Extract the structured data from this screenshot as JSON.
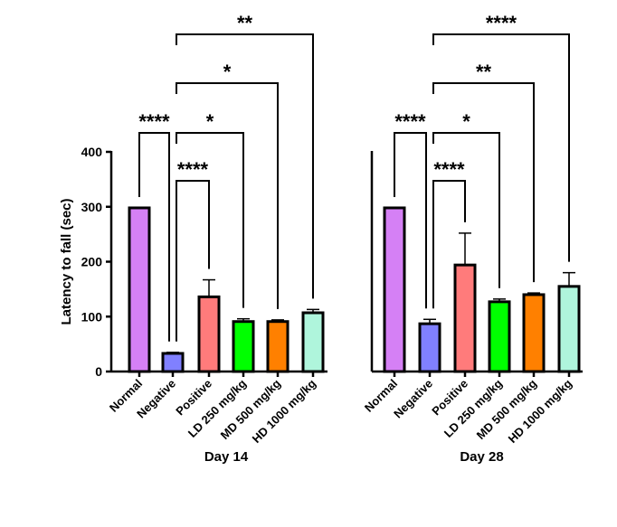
{
  "chart_data": [
    {
      "type": "bar",
      "title": "Day 14",
      "ylabel": "Latency to fall (sec)",
      "ylim": [
        0,
        400
      ],
      "yticks": [
        0,
        100,
        200,
        300,
        400
      ],
      "categories": [
        "Normal",
        "Negative",
        "Positive",
        "LD 250 mg/kg",
        "MD 500 mg/kg",
        "HD 1000 mg/kg"
      ],
      "values": [
        298,
        33,
        136,
        91,
        91,
        107
      ],
      "errors": [
        0,
        2,
        31,
        5,
        3,
        6
      ],
      "colors": [
        "#d580f5",
        "#8080ff",
        "#ff7b7b",
        "#00ff00",
        "#ff8000",
        "#aff5dc"
      ],
      "comparisons": [
        {
          "a": 0,
          "b": 1,
          "label": "****"
        },
        {
          "a": 1,
          "b": 3,
          "label": "*"
        },
        {
          "a": 1,
          "b": 2,
          "label": "****"
        },
        {
          "a": 1,
          "b": 4,
          "label": "*"
        },
        {
          "a": 1,
          "b": 5,
          "label": "**"
        }
      ]
    },
    {
      "type": "bar",
      "title": "Day 28",
      "ylim": [
        0,
        400
      ],
      "categories": [
        "Normal",
        "Negative",
        "Positive",
        "LD 250 mg/kg",
        "MD 500 mg/kg",
        "HD 1000 mg/kg"
      ],
      "values": [
        298,
        87,
        194,
        127,
        140,
        155
      ],
      "errors": [
        0,
        8,
        58,
        5,
        3,
        25
      ],
      "colors": [
        "#d580f5",
        "#8080ff",
        "#ff7b7b",
        "#00ff00",
        "#ff8000",
        "#aff5dc"
      ],
      "comparisons": [
        {
          "a": 0,
          "b": 1,
          "label": "****"
        },
        {
          "a": 1,
          "b": 3,
          "label": "*"
        },
        {
          "a": 1,
          "b": 2,
          "label": "****"
        },
        {
          "a": 1,
          "b": 4,
          "label": "**"
        },
        {
          "a": 1,
          "b": 5,
          "label": "****"
        }
      ]
    }
  ]
}
